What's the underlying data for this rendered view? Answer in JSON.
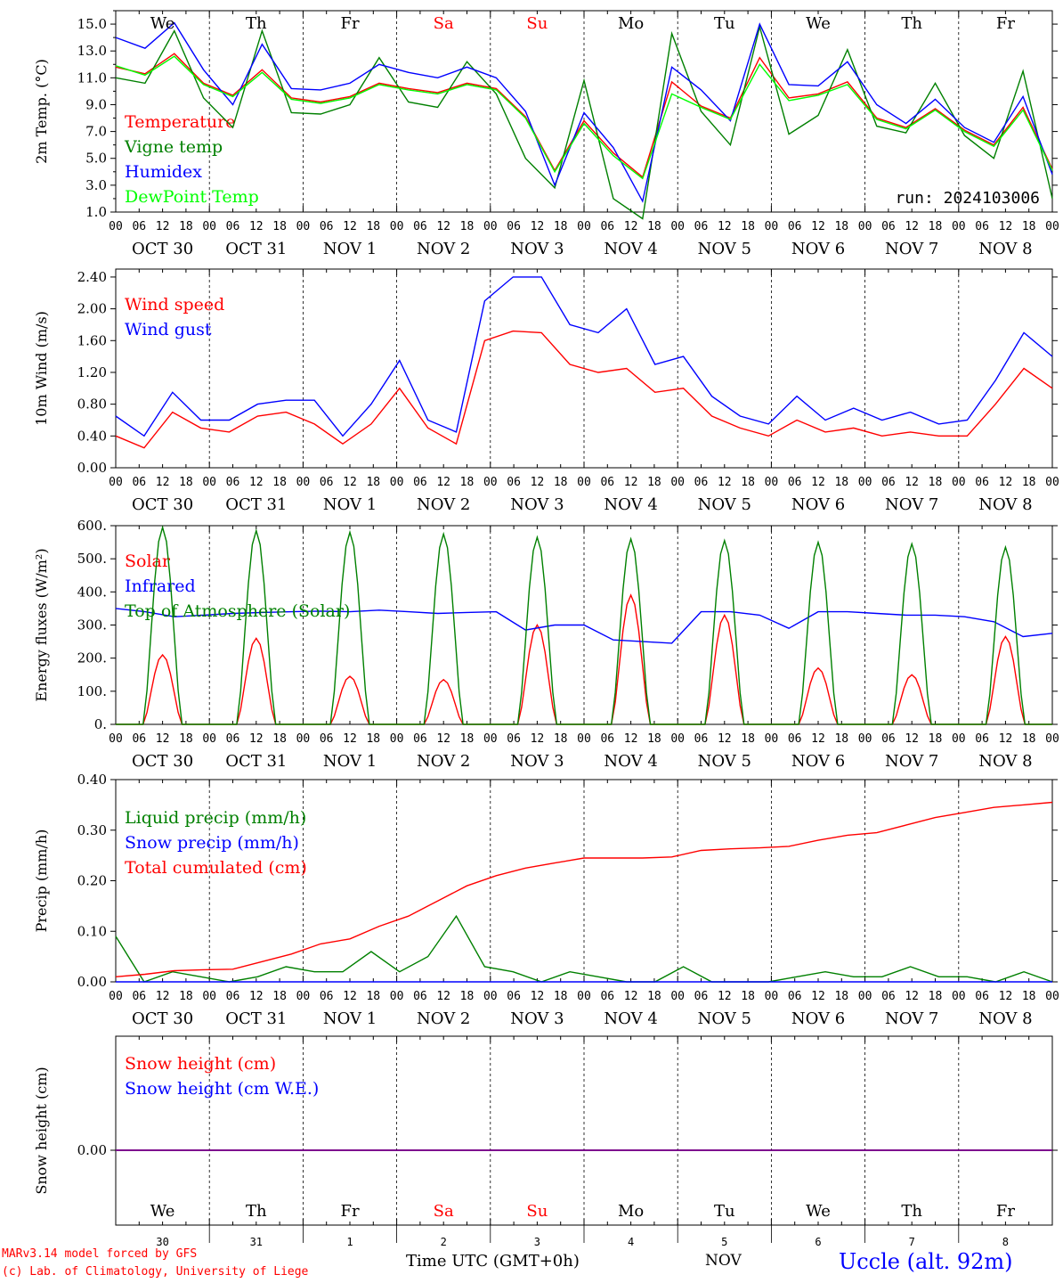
{
  "days": [
    {
      "abbr": "We",
      "date": "OCT 30",
      "num": "30",
      "weekend": false
    },
    {
      "abbr": "Th",
      "date": "OCT 31",
      "num": "31",
      "weekend": false
    },
    {
      "abbr": "Fr",
      "date": "NOV  1",
      "num": "1",
      "weekend": false
    },
    {
      "abbr": "Sa",
      "date": "NOV  2",
      "num": "2",
      "weekend": true
    },
    {
      "abbr": "Su",
      "date": "NOV  3",
      "num": "3",
      "weekend": true
    },
    {
      "abbr": "Mo",
      "date": "NOV  4",
      "num": "4",
      "weekend": false
    },
    {
      "abbr": "Tu",
      "date": "NOV  5",
      "num": "5",
      "weekend": false
    },
    {
      "abbr": "We",
      "date": "NOV  6",
      "num": "6",
      "weekend": false
    },
    {
      "abbr": "Th",
      "date": "NOV  7",
      "num": "7",
      "weekend": false
    },
    {
      "abbr": "Fr",
      "date": "NOV  8",
      "num": "8",
      "weekend": false
    }
  ],
  "hour_ticks": [
    "00",
    "06",
    "12",
    "18"
  ],
  "run_label": "run: 2024103006",
  "footer": {
    "model": "MARv3.14 model forced by GFS",
    "lab": "(c) Lab. of Climatology, University of Liege",
    "time_axis": "Time UTC (GMT+0h)",
    "month": "NOV",
    "station": "Uccle (alt. 92m)"
  },
  "colors": {
    "red": "#ff0000",
    "green": "#008000",
    "blue": "#0000ff",
    "lightgreen": "#00ff00",
    "purple": "#7f007f",
    "weekend": "#ff0000"
  },
  "chart_data": [
    {
      "type": "line",
      "ylabel": "2m Temp. (°C)",
      "ylim": [
        1.0,
        16.0
      ],
      "ticks": [
        "1.0",
        "3.0",
        "5.0",
        "7.0",
        "9.0",
        "11.0",
        "13.0",
        "15.0"
      ],
      "tick_values": [
        1,
        3,
        5,
        7,
        9,
        11,
        13,
        15
      ],
      "x": "hours since Oct 30 00 UTC, every 6 h (0 .. 240)",
      "series": [
        {
          "name": "Temperature",
          "color": "#ff0000",
          "values": [
            11.8,
            11.3,
            12.8,
            10.6,
            9.7,
            11.6,
            9.5,
            9.2,
            9.6,
            10.6,
            10.2,
            9.9,
            10.6,
            10.2,
            8.1,
            4.1,
            7.8,
            5.4,
            3.6,
            10.7,
            8.9,
            8.0,
            12.5,
            9.5,
            9.8,
            10.7,
            8.0,
            7.3,
            8.7,
            7.1,
            6.0,
            8.8,
            4.2
          ]
        },
        {
          "name": "Vigne temp",
          "color": "#008000",
          "values": [
            11.0,
            10.6,
            14.5,
            9.5,
            7.3,
            14.5,
            8.4,
            8.3,
            9.0,
            12.5,
            9.2,
            8.8,
            12.2,
            9.8,
            5.0,
            2.8,
            10.8,
            2.0,
            0.5,
            14.3,
            8.5,
            6.0,
            14.8,
            6.8,
            8.2,
            13.1,
            7.4,
            6.9,
            10.6,
            6.7,
            5.0,
            11.5,
            2.0
          ]
        },
        {
          "name": "Humidex",
          "color": "#0000ff",
          "values": [
            14.0,
            13.2,
            15.1,
            11.6,
            9.0,
            13.5,
            10.2,
            10.1,
            10.6,
            12.0,
            11.4,
            11.0,
            11.8,
            11.0,
            8.5,
            3.0,
            8.4,
            5.8,
            1.8,
            11.8,
            10.1,
            7.8,
            15.0,
            10.5,
            10.4,
            12.2,
            9.0,
            7.6,
            9.4,
            7.3,
            6.2,
            9.6,
            3.8
          ]
        },
        {
          "name": "DewPoint Temp",
          "color": "#00ff00",
          "values": [
            11.9,
            11.2,
            12.6,
            10.5,
            9.6,
            11.4,
            9.4,
            9.1,
            9.5,
            10.5,
            10.1,
            9.8,
            10.5,
            10.1,
            8.0,
            4.0,
            7.6,
            5.2,
            3.5,
            9.8,
            8.8,
            7.9,
            12.0,
            9.3,
            9.7,
            10.5,
            7.9,
            7.2,
            8.6,
            7.0,
            5.9,
            8.6,
            4.1
          ]
        }
      ]
    },
    {
      "type": "line",
      "ylabel": "10m Wind (m/s)",
      "ylim": [
        0.0,
        2.5
      ],
      "ticks": [
        "0.00",
        "0.40",
        "0.80",
        "1.20",
        "1.60",
        "2.00",
        "2.40"
      ],
      "tick_values": [
        0,
        0.4,
        0.8,
        1.2,
        1.6,
        2.0,
        2.4
      ],
      "series": [
        {
          "name": "Wind speed",
          "color": "#ff0000",
          "values": [
            0.4,
            0.25,
            0.7,
            0.5,
            0.45,
            0.65,
            0.7,
            0.55,
            0.3,
            0.55,
            1.0,
            0.5,
            0.3,
            1.6,
            1.72,
            1.7,
            1.3,
            1.2,
            1.25,
            0.95,
            1.0,
            0.65,
            0.5,
            0.4,
            0.6,
            0.45,
            0.5,
            0.4,
            0.45,
            0.4,
            0.4,
            0.8,
            1.25,
            1.0
          ]
        },
        {
          "name": "Wind gust",
          "color": "#0000ff",
          "values": [
            0.65,
            0.4,
            0.95,
            0.6,
            0.6,
            0.8,
            0.85,
            0.85,
            0.4,
            0.8,
            1.35,
            0.6,
            0.45,
            2.1,
            2.4,
            2.4,
            1.8,
            1.7,
            2.0,
            1.3,
            1.4,
            0.9,
            0.65,
            0.55,
            0.9,
            0.6,
            0.75,
            0.6,
            0.7,
            0.55,
            0.6,
            1.1,
            1.7,
            1.4
          ]
        }
      ]
    },
    {
      "type": "line",
      "ylabel": "Energy fluxes (W/m²)",
      "ylim": [
        0,
        600
      ],
      "ticks": [
        "0.",
        "100.",
        "200.",
        "300.",
        "400.",
        "500.",
        "600."
      ],
      "tick_values": [
        0,
        100,
        200,
        300,
        400,
        500,
        600
      ],
      "series": [
        {
          "name": "Solar",
          "color": "#ff0000",
          "peaks": [
            210,
            260,
            145,
            135,
            300,
            390,
            330,
            170,
            150,
            265
          ]
        },
        {
          "name": "Infrared",
          "color": "#0000ff",
          "values": [
            350,
            340,
            325,
            330,
            335,
            338,
            340,
            342,
            340,
            345,
            340,
            335,
            338,
            340,
            285,
            300,
            300,
            255,
            250,
            245,
            340,
            340,
            330,
            290,
            340,
            340,
            335,
            330,
            330,
            325,
            310,
            265,
            275
          ]
        },
        {
          "name": "Top of Atmosphere (Solar)",
          "color": "#008000",
          "peaks": [
            595,
            585,
            580,
            575,
            565,
            560,
            555,
            550,
            545,
            535
          ]
        }
      ]
    },
    {
      "type": "line",
      "ylabel": "Precip (mm/h)",
      "ylim": [
        0.0,
        0.4
      ],
      "ticks": [
        "0.00",
        "0.10",
        "0.20",
        "0.30",
        "0.40"
      ],
      "tick_values": [
        0,
        0.1,
        0.2,
        0.3,
        0.4
      ],
      "series": [
        {
          "name": "Liquid precip (mm/h)",
          "color": "#008000",
          "values": [
            0.09,
            0.0,
            0.02,
            0.01,
            0.0,
            0.01,
            0.03,
            0.02,
            0.02,
            0.06,
            0.02,
            0.05,
            0.13,
            0.03,
            0.02,
            0.0,
            0.02,
            0.01,
            0.0,
            0.0,
            0.03,
            0.0,
            0.0,
            0.0,
            0.01,
            0.02,
            0.01,
            0.01,
            0.03,
            0.01,
            0.01,
            0.0,
            0.02,
            0.0
          ]
        },
        {
          "name": "Snow precip (mm/h)",
          "color": "#0000ff",
          "values": [
            0,
            0,
            0,
            0,
            0,
            0,
            0,
            0,
            0,
            0,
            0,
            0,
            0,
            0,
            0,
            0,
            0,
            0,
            0,
            0,
            0,
            0,
            0,
            0,
            0,
            0,
            0,
            0,
            0,
            0,
            0,
            0,
            0,
            0
          ]
        },
        {
          "name": "Total cumulated (cm)",
          "color": "#ff0000",
          "values": [
            0.01,
            0.015,
            0.022,
            0.024,
            0.025,
            0.04,
            0.055,
            0.075,
            0.085,
            0.11,
            0.13,
            0.16,
            0.19,
            0.21,
            0.225,
            0.235,
            0.245,
            0.245,
            0.245,
            0.247,
            0.26,
            0.263,
            0.265,
            0.268,
            0.28,
            0.29,
            0.295,
            0.31,
            0.325,
            0.335,
            0.345,
            0.35,
            0.355
          ]
        }
      ]
    },
    {
      "type": "line",
      "ylabel": "Snow height (cm)",
      "ticks": [
        "0.00"
      ],
      "tick_values": [
        0
      ],
      "series": [
        {
          "name": "Snow height (cm)",
          "color": "#ff0000",
          "values": [
            0,
            0
          ]
        },
        {
          "name": "Snow height (cm W.E.)",
          "color": "#0000ff",
          "values": [
            0,
            0
          ]
        }
      ]
    }
  ]
}
